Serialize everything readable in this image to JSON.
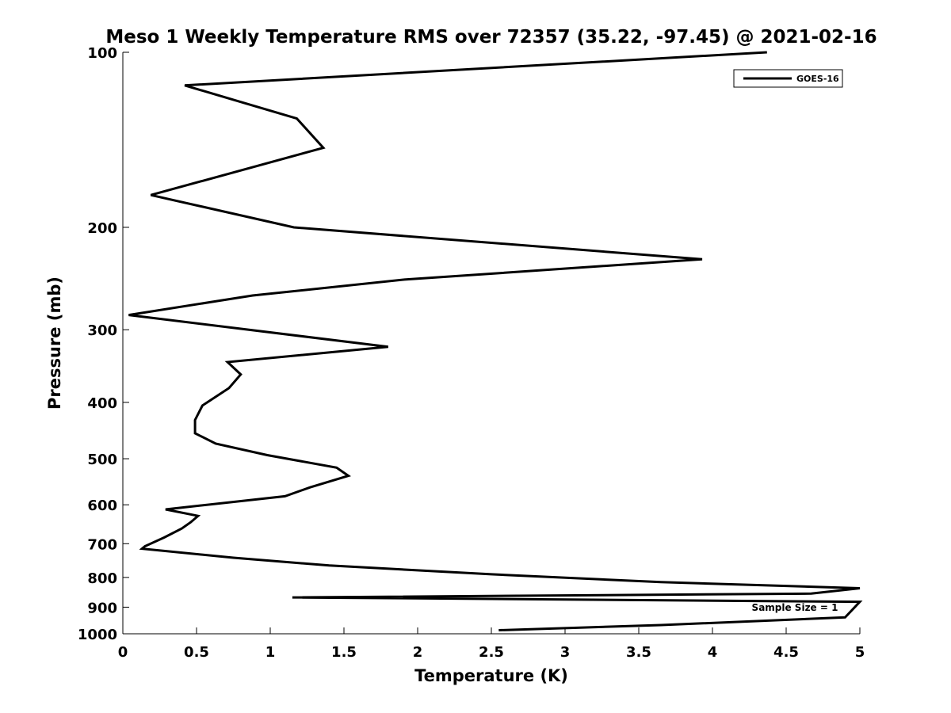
{
  "chart_data": {
    "type": "line",
    "title": "Meso 1 Weekly Temperature RMS over 72357 (35.22, -97.45) @ 2021-02-16",
    "xlabel": "Temperature (K)",
    "ylabel": "Pressure (mb)",
    "xlim": [
      0,
      5
    ],
    "ylim": [
      100,
      1000
    ],
    "y_scale": "log",
    "y_reversed": true,
    "x_ticks": [
      0,
      0.5,
      1,
      1.5,
      2,
      2.5,
      3,
      3.5,
      4,
      4.5,
      5
    ],
    "x_tick_labels": [
      "0",
      "0.5",
      "1",
      "1.5",
      "2",
      "2.5",
      "3",
      "3.5",
      "4",
      "4.5",
      "5"
    ],
    "y_ticks": [
      100,
      200,
      300,
      400,
      500,
      600,
      700,
      800,
      900,
      1000
    ],
    "y_tick_labels": [
      "100",
      "200",
      "300",
      "400",
      "500",
      "600",
      "700",
      "800",
      "900",
      "1000"
    ],
    "grid": false,
    "legend_position": "top-right",
    "annotation": "Sample Size = 1",
    "line_color": "#000000",
    "series": [
      {
        "name": "GOES-16",
        "x": [
          4.37,
          0.42,
          1.18,
          1.36,
          0.19,
          1.16,
          3.93,
          1.91,
          0.88,
          0.04,
          1.8,
          0.71,
          0.8,
          0.72,
          0.54,
          0.49,
          0.49,
          0.63,
          0.98,
          1.45,
          1.53,
          1.27,
          1.1,
          0.29,
          0.51,
          0.46,
          0.4,
          0.28,
          0.15,
          0.13,
          0.75,
          1.4,
          2.5,
          3.65,
          5.0,
          4.67,
          1.15,
          5.0,
          4.9,
          3.65,
          2.55
        ],
        "y": [
          100,
          114,
          130,
          146,
          176,
          200,
          227,
          246,
          262,
          283,
          321,
          341,
          358,
          378,
          405,
          429,
          452,
          471,
          493,
          518,
          535,
          560,
          580,
          611,
          627,
          643,
          659,
          683,
          707,
          714,
          740,
          763,
          790,
          815,
          835,
          853,
          866,
          881,
          937,
          966,
          986
        ]
      }
    ]
  }
}
